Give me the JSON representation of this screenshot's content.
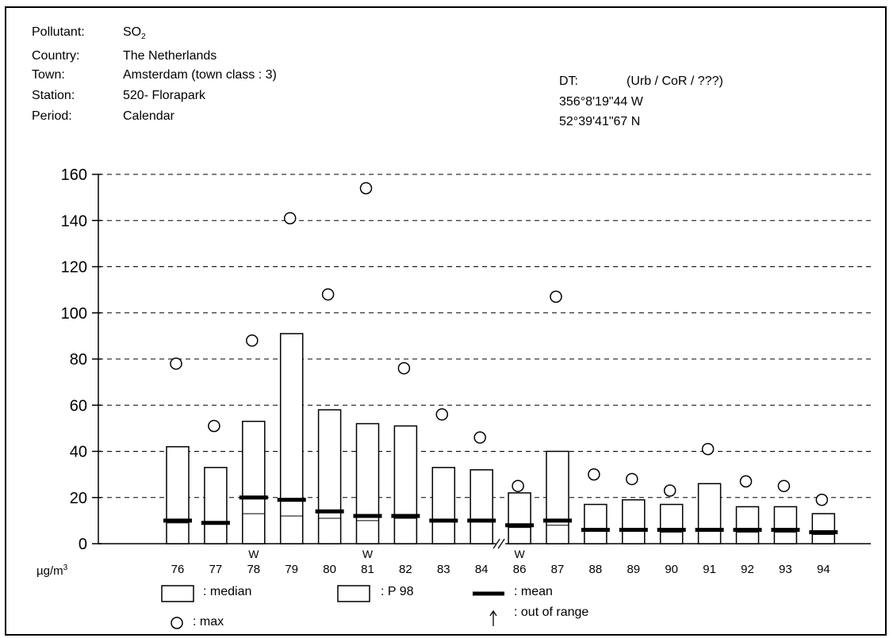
{
  "header": {
    "rows": [
      {
        "label": "Pollutant:",
        "value": "SO",
        "subscript": "2"
      },
      {
        "label": "Country:",
        "value": "The Netherlands"
      },
      {
        "label": "Town:",
        "value": "Amsterdam (town class : 3)"
      },
      {
        "label": "Station:",
        "value": "520- Florapark"
      },
      {
        "label": "Period:",
        "value": "Calendar"
      }
    ],
    "location": {
      "dt_label": "DT:",
      "dt_value": "(Urb / CoR / ???)",
      "longitude": "356°8'19\"44 W",
      "latitude": "52°39'41\"67 N"
    }
  },
  "chart_data": {
    "type": "bar",
    "unit": "µg/m",
    "unit_superscript": "3",
    "ylim": [
      0,
      160
    ],
    "yticks": [
      0,
      20,
      40,
      60,
      80,
      100,
      120,
      140,
      160
    ],
    "grid": true,
    "categories": [
      "76",
      "77",
      "78",
      "79",
      "80",
      "81",
      "82",
      "83",
      "84",
      "86",
      "87",
      "88",
      "89",
      "90",
      "91",
      "92",
      "93",
      "94"
    ],
    "w_flags": [
      false,
      false,
      true,
      false,
      false,
      true,
      false,
      false,
      false,
      true,
      false,
      false,
      false,
      false,
      false,
      false,
      false,
      false
    ],
    "w_label": "W",
    "axis_break_after_index": 8,
    "series": [
      {
        "name": "median",
        "values": [
          9,
          9,
          13,
          12,
          11,
          10,
          11,
          10,
          10,
          7,
          8,
          6,
          6,
          5,
          6,
          5,
          5,
          4
        ]
      },
      {
        "name": "P 98",
        "values": [
          42,
          33,
          53,
          91,
          58,
          52,
          51,
          33,
          32,
          22,
          40,
          17,
          19,
          17,
          26,
          16,
          16,
          13
        ]
      },
      {
        "name": "mean",
        "values": [
          10,
          9,
          20,
          19,
          14,
          12,
          12,
          10,
          10,
          8,
          10,
          6,
          6,
          6,
          6,
          6,
          6,
          5
        ]
      },
      {
        "name": "max",
        "values": [
          78,
          51,
          88,
          141,
          108,
          154,
          76,
          56,
          46,
          25,
          107,
          30,
          28,
          23,
          41,
          27,
          25,
          19
        ]
      }
    ],
    "legend": [
      {
        "symbol": "box",
        "label": ": median"
      },
      {
        "symbol": "box",
        "label": ": P 98"
      },
      {
        "symbol": "bar",
        "label": ": mean"
      },
      {
        "symbol": "circle",
        "label": ": max"
      },
      {
        "symbol": "arrow",
        "label": ": out of range"
      }
    ]
  }
}
